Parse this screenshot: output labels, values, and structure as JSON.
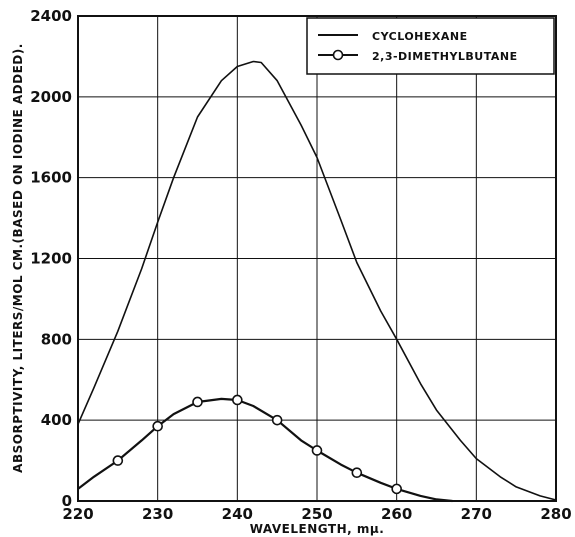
{
  "chart_data": {
    "type": "line",
    "xlabel": "WAVELENGTH, mμ.",
    "ylabel": "ABSORPTIVITY, LITERS/MOL CM.(BASED ON IODINE ADDED).",
    "xlim": [
      220,
      280
    ],
    "ylim": [
      0,
      2400
    ],
    "x_ticks": [
      "220",
      "230",
      "240",
      "250",
      "260",
      "270",
      "280"
    ],
    "y_ticks": [
      "0",
      "400",
      "800",
      "1200",
      "1600",
      "2000",
      "2400"
    ],
    "grid": true,
    "legend_position": "top-right",
    "series": [
      {
        "name": "CYCLOHEXANE",
        "marker": "none",
        "x": [
          220,
          222,
          225,
          228,
          230,
          232,
          235,
          238,
          240,
          242,
          243,
          245,
          248,
          250,
          253,
          255,
          258,
          260,
          263,
          265,
          268,
          270,
          273,
          275,
          278,
          280
        ],
        "y": [
          380,
          560,
          840,
          1150,
          1380,
          1600,
          1900,
          2080,
          2150,
          2175,
          2170,
          2080,
          1860,
          1700,
          1390,
          1180,
          940,
          800,
          580,
          450,
          300,
          210,
          120,
          70,
          25,
          5
        ]
      },
      {
        "name": "2,3-DIMETHYLBUTANE",
        "marker": "circle",
        "x": [
          220,
          222,
          225,
          228,
          230,
          232,
          235,
          238,
          240,
          242,
          245,
          248,
          250,
          253,
          255,
          258,
          260,
          263,
          265,
          267
        ],
        "y": [
          60,
          120,
          200,
          300,
          370,
          430,
          490,
          505,
          500,
          470,
          400,
          300,
          250,
          180,
          140,
          90,
          60,
          25,
          8,
          0
        ]
      }
    ],
    "markers": [
      {
        "series": "2,3-DIMETHYLBUTANE",
        "x": [
          225,
          230,
          235,
          240,
          245,
          250,
          255,
          260
        ],
        "y": [
          200,
          370,
          490,
          500,
          400,
          250,
          140,
          60
        ]
      }
    ]
  }
}
